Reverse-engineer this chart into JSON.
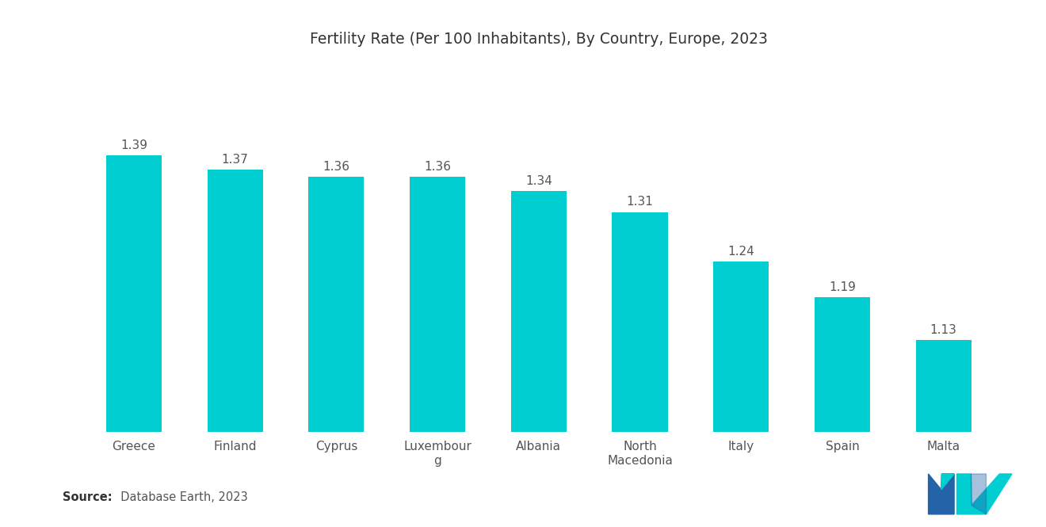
{
  "title": "Fertility Rate (Per 100 Inhabitants), By Country, Europe, 2023",
  "categories": [
    "Greece",
    "Finland",
    "Cyprus",
    "Luxembour\ng",
    "Albania",
    "North\nMacedonia",
    "Italy",
    "Spain",
    "Malta"
  ],
  "values": [
    1.39,
    1.37,
    1.36,
    1.36,
    1.34,
    1.31,
    1.24,
    1.19,
    1.13
  ],
  "bar_color": "#00CED1",
  "title_fontsize": 13.5,
  "label_fontsize": 11,
  "value_fontsize": 11,
  "source_bold": "Source:",
  "source_normal": "  Database Earth, 2023",
  "background_color": "#ffffff",
  "ylim_min": 1.0,
  "ylim_max": 1.52,
  "bar_width": 0.55,
  "text_color": "#555555",
  "logo_blue": "#2563A8",
  "logo_teal": "#00CED1"
}
